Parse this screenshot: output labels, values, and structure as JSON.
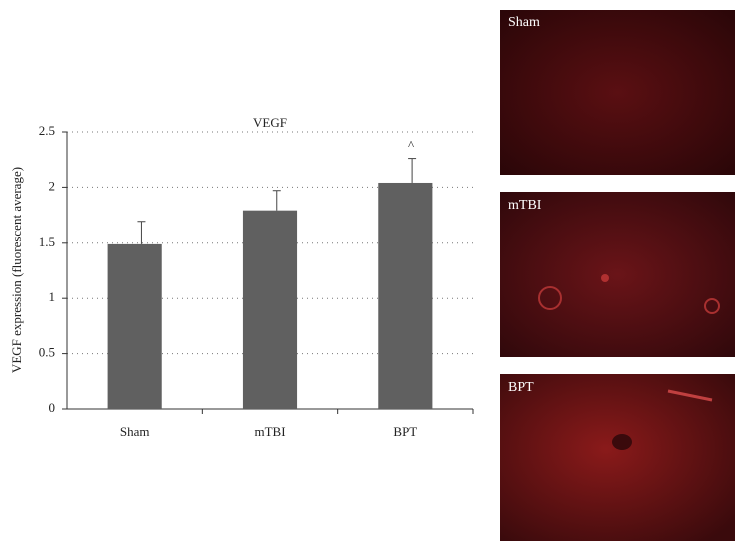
{
  "chart_data": {
    "type": "bar",
    "title": "VEGF",
    "y_label": "VEGF expression (fluorescent average)",
    "categories": [
      "Sham",
      "mTBI",
      "BPT"
    ],
    "values": [
      1.49,
      1.79,
      2.04
    ],
    "errors": [
      0.2,
      0.18,
      0.22
    ],
    "annotations": [
      null,
      null,
      "^"
    ],
    "color": "#606060",
    "ylim": [
      0,
      2.5
    ],
    "yticks": [
      0,
      0.5,
      1,
      1.5,
      2,
      2.5
    ],
    "grid": true
  },
  "panels": [
    {
      "label": "Sham"
    },
    {
      "label": "mTBI"
    },
    {
      "label": "BPT"
    }
  ]
}
